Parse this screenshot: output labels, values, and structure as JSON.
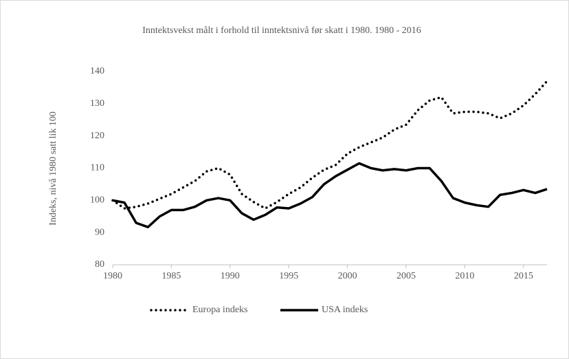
{
  "chart_data": {
    "type": "line",
    "title": "Inntektsvekst målt i forhold til inntektsnivå før skatt i 1980. 1980 - 2016",
    "y_label": "Indeks, nivå 1980 satt lik 100",
    "x": [
      1980,
      1981,
      1982,
      1983,
      1984,
      1985,
      1986,
      1987,
      1988,
      1989,
      1990,
      1991,
      1992,
      1993,
      1994,
      1995,
      1996,
      1997,
      1998,
      1999,
      2000,
      2001,
      2002,
      2003,
      2004,
      2005,
      2006,
      2007,
      2008,
      2009,
      2010,
      2011,
      2012,
      2013,
      2014,
      2015,
      2016,
      2017
    ],
    "series": [
      {
        "name": "Europa indeks",
        "color": "#000000",
        "style": "dotted",
        "values": [
          100,
          97.5,
          98,
          99,
          100.5,
          102,
          104,
          106,
          109,
          110,
          108,
          102,
          99.5,
          97.5,
          99.5,
          102,
          104,
          107,
          109.5,
          111,
          114.5,
          116.5,
          118,
          119.5,
          122,
          123.5,
          128,
          131,
          132,
          127,
          127.5,
          127.5,
          127,
          125.5,
          127,
          129.5,
          133,
          137
        ]
      },
      {
        "name": "USA indeks",
        "color": "#000000",
        "style": "solid",
        "values": [
          100,
          99.3,
          93,
          91.7,
          95,
          97,
          97,
          98,
          100,
          100.7,
          100,
          96,
          94,
          95.5,
          97.8,
          97.5,
          99,
          101,
          105,
          107.5,
          109.5,
          111.5,
          110,
          109.3,
          109.7,
          109.3,
          110,
          110,
          106,
          100.7,
          99.3,
          98.5,
          98,
          101.7,
          102.3,
          103.2,
          102.3,
          103.5
        ]
      }
    ],
    "xlim": [
      1980,
      2017
    ],
    "xticks": [
      1980,
      1985,
      1990,
      1995,
      2000,
      2005,
      2010,
      2015
    ],
    "ylim": [
      80,
      140
    ],
    "yticks": [
      80,
      90,
      100,
      110,
      120,
      130,
      140
    ],
    "legend": "bottom"
  }
}
